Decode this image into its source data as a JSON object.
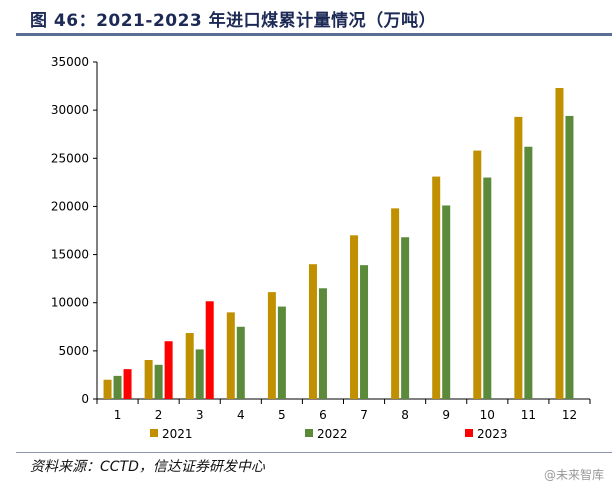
{
  "title": "图 46：2021-2023 年进口煤累计量情况（万吨）",
  "source": "资料来源：CCTD，信达证券研发中心",
  "watermark": "@未来智库",
  "chart_data": {
    "type": "bar",
    "title": "",
    "xlabel": "",
    "ylabel": "",
    "ylim": [
      0,
      35000
    ],
    "yticks": [
      0,
      5000,
      10000,
      15000,
      20000,
      25000,
      30000,
      35000
    ],
    "grid": false,
    "legend": "bottom",
    "categories": [
      "1",
      "2",
      "3",
      "4",
      "5",
      "6",
      "7",
      "8",
      "9",
      "10",
      "11",
      "12"
    ],
    "series": [
      {
        "name": "2021",
        "color": "#c09000",
        "values": [
          2000,
          4050,
          6850,
          9000,
          11100,
          14000,
          17000,
          19800,
          23100,
          25800,
          29300,
          32300
        ]
      },
      {
        "name": "2022",
        "color": "#5b8a3a",
        "values": [
          2400,
          3550,
          5150,
          7500,
          9600,
          11500,
          13900,
          16800,
          20100,
          23000,
          26200,
          29400
        ]
      },
      {
        "name": "2023",
        "color": "#ff0000",
        "values": [
          3100,
          6000,
          10150,
          null,
          null,
          null,
          null,
          null,
          null,
          null,
          null,
          null
        ]
      }
    ]
  }
}
